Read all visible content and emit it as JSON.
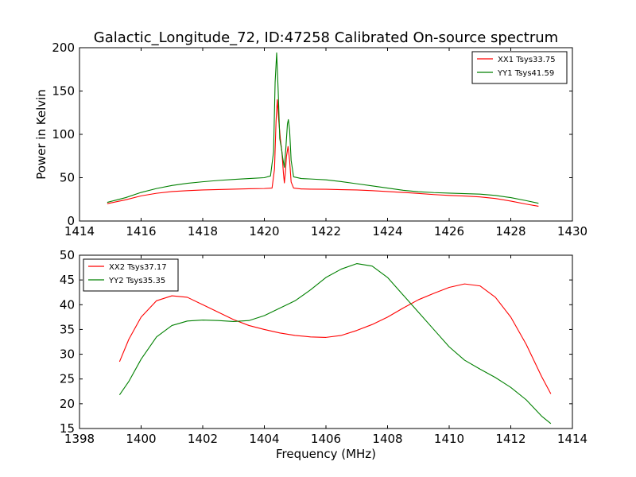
{
  "figure": {
    "title": "Galactic_Longitude_72, ID:47258 Calibrated On-source spectrum"
  },
  "chart_data": [
    {
      "type": "line",
      "ylabel": "Power in Kelvin",
      "xlabel": "",
      "xlim": [
        1414,
        1430
      ],
      "ylim": [
        0,
        200
      ],
      "xticks": [
        1414,
        1416,
        1418,
        1420,
        1422,
        1424,
        1426,
        1428,
        1430
      ],
      "yticks": [
        0,
        50,
        100,
        150,
        200
      ],
      "grid": false,
      "legend_position": "top-right",
      "series": [
        {
          "name": "XX1 Tsys33.75",
          "color": "#ff0000",
          "points": [
            [
              1414.9,
              20.0
            ],
            [
              1415.5,
              24.5
            ],
            [
              1416.0,
              29.0
            ],
            [
              1416.5,
              32.0
            ],
            [
              1417.0,
              34.0
            ],
            [
              1417.5,
              35.0
            ],
            [
              1418.0,
              35.8
            ],
            [
              1418.5,
              36.3
            ],
            [
              1419.0,
              36.8
            ],
            [
              1419.5,
              37.2
            ],
            [
              1420.0,
              37.5
            ],
            [
              1420.25,
              38.0
            ],
            [
              1420.33,
              60.0
            ],
            [
              1420.38,
              115.0
            ],
            [
              1420.42,
              140.0
            ],
            [
              1420.47,
              115.0
            ],
            [
              1420.52,
              95.0
            ],
            [
              1420.57,
              80.0
            ],
            [
              1420.62,
              55.0
            ],
            [
              1420.65,
              44.0
            ],
            [
              1420.68,
              55.0
            ],
            [
              1420.72,
              75.0
            ],
            [
              1420.77,
              86.0
            ],
            [
              1420.82,
              70.0
            ],
            [
              1420.87,
              45.0
            ],
            [
              1420.95,
              38.0
            ],
            [
              1421.2,
              37.0
            ],
            [
              1421.5,
              36.8
            ],
            [
              1422.0,
              36.6
            ],
            [
              1422.5,
              36.2
            ],
            [
              1423.0,
              35.8
            ],
            [
              1423.5,
              35.0
            ],
            [
              1424.0,
              34.0
            ],
            [
              1424.5,
              33.0
            ],
            [
              1425.0,
              31.8
            ],
            [
              1425.5,
              30.5
            ],
            [
              1426.0,
              29.5
            ],
            [
              1426.5,
              28.8
            ],
            [
              1427.0,
              27.8
            ],
            [
              1427.5,
              26.0
            ],
            [
              1428.0,
              23.0
            ],
            [
              1428.5,
              19.5
            ],
            [
              1428.9,
              17.0
            ]
          ]
        },
        {
          "name": "YY1 Tsys41.59",
          "color": "#008000",
          "points": [
            [
              1414.9,
              21.5
            ],
            [
              1415.5,
              27.0
            ],
            [
              1416.0,
              33.0
            ],
            [
              1416.5,
              37.5
            ],
            [
              1417.0,
              41.0
            ],
            [
              1417.5,
              43.5
            ],
            [
              1418.0,
              45.3
            ],
            [
              1418.5,
              46.8
            ],
            [
              1419.0,
              48.0
            ],
            [
              1419.5,
              49.0
            ],
            [
              1420.0,
              50.0
            ],
            [
              1420.2,
              52.0
            ],
            [
              1420.3,
              80.0
            ],
            [
              1420.35,
              160.0
            ],
            [
              1420.4,
              194.0
            ],
            [
              1420.45,
              150.0
            ],
            [
              1420.5,
              95.0
            ],
            [
              1420.55,
              85.0
            ],
            [
              1420.6,
              72.0
            ],
            [
              1420.65,
              62.0
            ],
            [
              1420.7,
              85.0
            ],
            [
              1420.75,
              112.0
            ],
            [
              1420.78,
              117.0
            ],
            [
              1420.82,
              105.0
            ],
            [
              1420.87,
              70.0
            ],
            [
              1420.95,
              51.0
            ],
            [
              1421.2,
              49.0
            ],
            [
              1421.5,
              48.5
            ],
            [
              1422.0,
              47.5
            ],
            [
              1422.5,
              45.5
            ],
            [
              1423.0,
              43.0
            ],
            [
              1423.5,
              40.5
            ],
            [
              1424.0,
              38.0
            ],
            [
              1424.5,
              35.5
            ],
            [
              1425.0,
              33.8
            ],
            [
              1425.5,
              32.8
            ],
            [
              1426.0,
              32.2
            ],
            [
              1426.5,
              31.6
            ],
            [
              1427.0,
              31.0
            ],
            [
              1427.5,
              29.5
            ],
            [
              1428.0,
              27.0
            ],
            [
              1428.5,
              23.5
            ],
            [
              1428.9,
              20.5
            ]
          ]
        }
      ]
    },
    {
      "type": "line",
      "ylabel": "",
      "xlabel": "Frequency (MHz)",
      "xlim": [
        1398,
        1414
      ],
      "ylim": [
        15,
        50
      ],
      "xticks": [
        1398,
        1400,
        1402,
        1404,
        1406,
        1408,
        1410,
        1412,
        1414
      ],
      "yticks": [
        15,
        20,
        25,
        30,
        35,
        40,
        45,
        50
      ],
      "grid": false,
      "legend_position": "top-left",
      "series": [
        {
          "name": "XX2 Tsys37.17",
          "color": "#ff0000",
          "points": [
            [
              1399.3,
              28.5
            ],
            [
              1399.6,
              33.0
            ],
            [
              1400.0,
              37.5
            ],
            [
              1400.5,
              40.8
            ],
            [
              1401.0,
              41.8
            ],
            [
              1401.5,
              41.5
            ],
            [
              1402.0,
              40.0
            ],
            [
              1402.5,
              38.5
            ],
            [
              1403.0,
              37.0
            ],
            [
              1403.5,
              35.8
            ],
            [
              1404.0,
              35.0
            ],
            [
              1404.5,
              34.3
            ],
            [
              1405.0,
              33.8
            ],
            [
              1405.5,
              33.5
            ],
            [
              1406.0,
              33.4
            ],
            [
              1406.5,
              33.8
            ],
            [
              1407.0,
              34.8
            ],
            [
              1407.5,
              36.0
            ],
            [
              1408.0,
              37.5
            ],
            [
              1408.5,
              39.3
            ],
            [
              1409.0,
              41.0
            ],
            [
              1409.5,
              42.3
            ],
            [
              1410.0,
              43.5
            ],
            [
              1410.5,
              44.2
            ],
            [
              1411.0,
              43.8
            ],
            [
              1411.5,
              41.5
            ],
            [
              1412.0,
              37.5
            ],
            [
              1412.5,
              32.0
            ],
            [
              1413.0,
              25.5
            ],
            [
              1413.3,
              22.0
            ]
          ]
        },
        {
          "name": "YY2 Tsys35.35",
          "color": "#008000",
          "points": [
            [
              1399.3,
              21.8
            ],
            [
              1399.6,
              24.5
            ],
            [
              1400.0,
              29.0
            ],
            [
              1400.5,
              33.5
            ],
            [
              1401.0,
              35.8
            ],
            [
              1401.5,
              36.7
            ],
            [
              1402.0,
              36.9
            ],
            [
              1402.5,
              36.8
            ],
            [
              1403.0,
              36.6
            ],
            [
              1403.5,
              36.8
            ],
            [
              1404.0,
              37.8
            ],
            [
              1404.5,
              39.3
            ],
            [
              1405.0,
              40.8
            ],
            [
              1405.5,
              43.0
            ],
            [
              1406.0,
              45.5
            ],
            [
              1406.5,
              47.2
            ],
            [
              1407.0,
              48.3
            ],
            [
              1407.5,
              47.8
            ],
            [
              1408.0,
              45.5
            ],
            [
              1408.5,
              42.0
            ],
            [
              1409.0,
              38.5
            ],
            [
              1409.5,
              35.0
            ],
            [
              1410.0,
              31.5
            ],
            [
              1410.5,
              28.8
            ],
            [
              1411.0,
              27.0
            ],
            [
              1411.5,
              25.3
            ],
            [
              1412.0,
              23.3
            ],
            [
              1412.5,
              20.8
            ],
            [
              1413.0,
              17.5
            ],
            [
              1413.3,
              16.0
            ]
          ]
        }
      ]
    }
  ]
}
